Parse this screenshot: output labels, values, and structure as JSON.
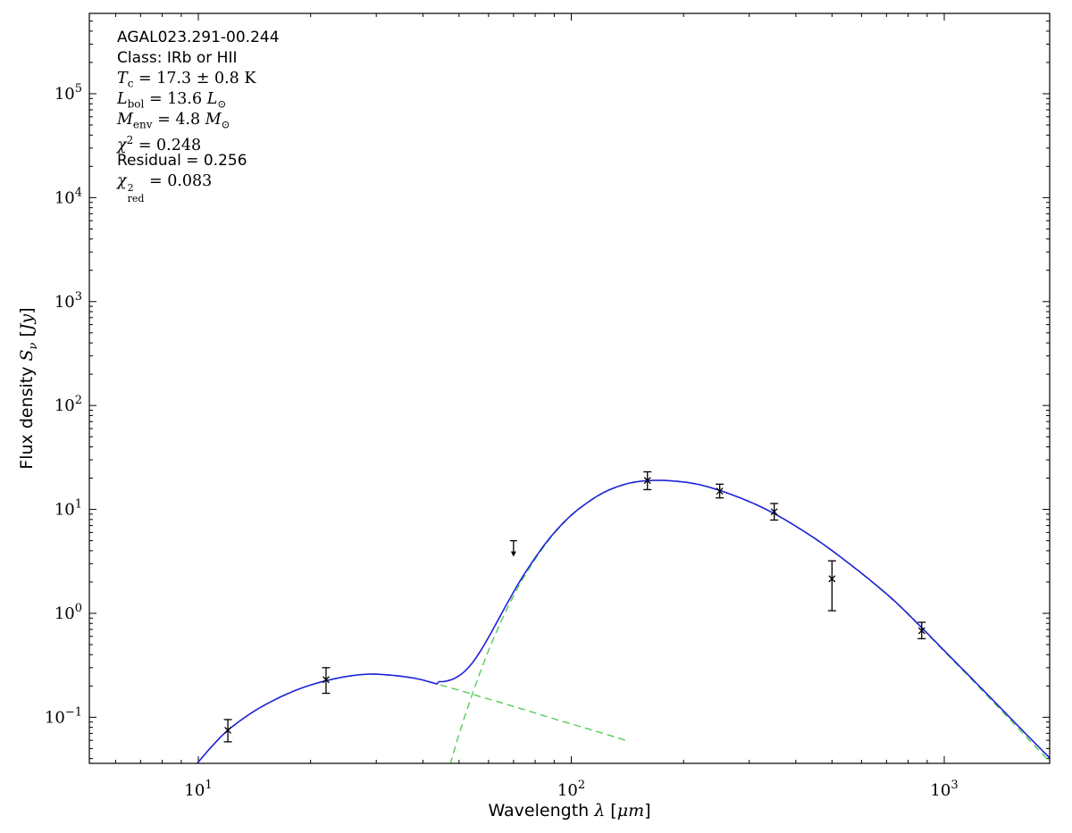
{
  "figure": {
    "background": "#ffffff"
  },
  "info": {
    "name": "AGAL023.291-00.244",
    "class_line": "Class: IRb or HII",
    "tc": {
      "var": "T",
      "sub": "c",
      "rest": " = 17.3 ± 0.8 K"
    },
    "lbol": {
      "var": "L",
      "sub": "bol",
      "eq": " = 13.6 ",
      "unit_var": "L",
      "unit_sub": "⊙"
    },
    "menv": {
      "var": "M",
      "sub": "env",
      "eq": " = 4.8 ",
      "unit_var": "M",
      "unit_sub": "⊙"
    },
    "chi2": {
      "var": "χ",
      "sup": "2",
      "rest": " = 0.248"
    },
    "residual": "Residual = 0.256",
    "chi2red": {
      "var": "χ",
      "sup": "2",
      "sub": "red",
      "rest": " = 0.083"
    }
  },
  "chart_data": {
    "type": "line",
    "title": "",
    "xlabel": {
      "prefix": "Wavelength ",
      "symbol": "λ",
      "bracket_open": " [",
      "unit": "μm",
      "bracket_close": "]"
    },
    "ylabel": {
      "prefix": "Flux density ",
      "symbol": "S",
      "symbol_sub": "ν",
      "bracket_open": " [",
      "unit": "Jy",
      "bracket_close": "]"
    },
    "xlim": [
      5.102,
      1917
    ],
    "ylim": [
      0.036,
      593000
    ],
    "grid": false,
    "x_ticks": [
      {
        "value": 10,
        "mantissa": "10",
        "exp": "1"
      },
      {
        "value": 100,
        "mantissa": "10",
        "exp": "2"
      },
      {
        "value": 1000,
        "mantissa": "10",
        "exp": "3"
      }
    ],
    "y_ticks": [
      {
        "value": 0.1,
        "mantissa": "10",
        "exp": "−1"
      },
      {
        "value": 1,
        "mantissa": "10",
        "exp": "0"
      },
      {
        "value": 10,
        "mantissa": "10",
        "exp": "1"
      },
      {
        "value": 100,
        "mantissa": "10",
        "exp": "2"
      },
      {
        "value": 1000,
        "mantissa": "10",
        "exp": "3"
      },
      {
        "value": 10000,
        "mantissa": "10",
        "exp": "4"
      },
      {
        "value": 100000,
        "mantissa": "10",
        "exp": "5"
      }
    ],
    "colors": {
      "total_fit": "#2020dd",
      "components": "#55cc55",
      "data": "#000000"
    },
    "series": [
      {
        "name": "cold-greybody-component",
        "style": "dashed",
        "samples": [
          [
            44,
            0.013
          ],
          [
            48,
            0.042
          ],
          [
            52,
            0.106
          ],
          [
            57,
            0.272
          ],
          [
            62,
            0.582
          ],
          [
            68,
            1.2
          ],
          [
            75,
            2.3
          ],
          [
            85,
            4.53
          ],
          [
            95,
            7.28
          ],
          [
            105,
            10.1
          ],
          [
            120,
            14.0
          ],
          [
            135,
            16.8
          ],
          [
            150,
            18.4
          ],
          [
            170,
            19.0
          ],
          [
            195,
            18.5
          ],
          [
            220,
            17.3
          ],
          [
            250,
            15.2
          ],
          [
            285,
            12.8
          ],
          [
            320,
            10.7
          ],
          [
            360,
            8.6
          ],
          [
            410,
            6.5
          ],
          [
            470,
            4.7
          ],
          [
            540,
            3.25
          ],
          [
            630,
            2.1
          ],
          [
            740,
            1.28
          ],
          [
            870,
            0.72
          ],
          [
            1020,
            0.4
          ],
          [
            1200,
            0.22
          ],
          [
            1450,
            0.108
          ],
          [
            1700,
            0.059
          ],
          [
            1950,
            0.035
          ]
        ]
      },
      {
        "name": "warm-mid-ir-component",
        "style": "dashed",
        "draw_max_x": 140,
        "samples": [
          [
            9.3,
            0.026
          ],
          [
            10,
            0.037
          ],
          [
            11,
            0.055
          ],
          [
            12,
            0.075
          ],
          [
            13.5,
            0.103
          ],
          [
            15,
            0.13
          ],
          [
            17,
            0.163
          ],
          [
            19,
            0.192
          ],
          [
            21,
            0.215
          ],
          [
            23,
            0.233
          ],
          [
            25,
            0.247
          ],
          [
            27,
            0.256
          ],
          [
            29,
            0.26
          ],
          [
            31,
            0.258
          ],
          [
            34,
            0.251
          ],
          [
            37,
            0.241
          ],
          [
            40,
            0.228
          ],
          [
            44,
            0.207
          ],
          [
            48,
            0.19
          ],
          [
            53,
            0.171
          ],
          [
            58,
            0.155
          ],
          [
            64,
            0.14
          ],
          [
            70,
            0.127
          ],
          [
            78,
            0.113
          ],
          [
            87,
            0.1
          ],
          [
            97,
            0.089
          ],
          [
            110,
            0.078
          ],
          [
            125,
            0.068
          ],
          [
            140,
            0.06
          ],
          [
            170,
            0.049
          ],
          [
            210,
            0.039
          ],
          [
            270,
            0.03
          ],
          [
            350,
            0.0225
          ],
          [
            500,
            0.0152
          ],
          [
            700,
            0.0104
          ],
          [
            1000,
            0.0069
          ],
          [
            1400,
            0.0047
          ],
          [
            1950,
            0.0032
          ]
        ]
      },
      {
        "name": "total-fit",
        "style": "solid",
        "derived": "sum-of-components",
        "samples": []
      }
    ],
    "points": [
      {
        "x": 12,
        "y": 0.075,
        "lo": 0.058,
        "hi": 0.095
      },
      {
        "x": 22,
        "y": 0.23,
        "lo": 0.17,
        "hi": 0.3
      },
      {
        "x": 70,
        "y": 5.0,
        "upper_limit": true
      },
      {
        "x": 160,
        "y": 19,
        "lo": 15.5,
        "hi": 23.0
      },
      {
        "x": 250,
        "y": 15,
        "lo": 12.9,
        "hi": 17.5
      },
      {
        "x": 350,
        "y": 9.5,
        "lo": 7.9,
        "hi": 11.4
      },
      {
        "x": 500,
        "y": 2.15,
        "lo": 1.06,
        "hi": 3.2
      },
      {
        "x": 870,
        "y": 0.68,
        "lo": 0.57,
        "hi": 0.82
      }
    ]
  }
}
